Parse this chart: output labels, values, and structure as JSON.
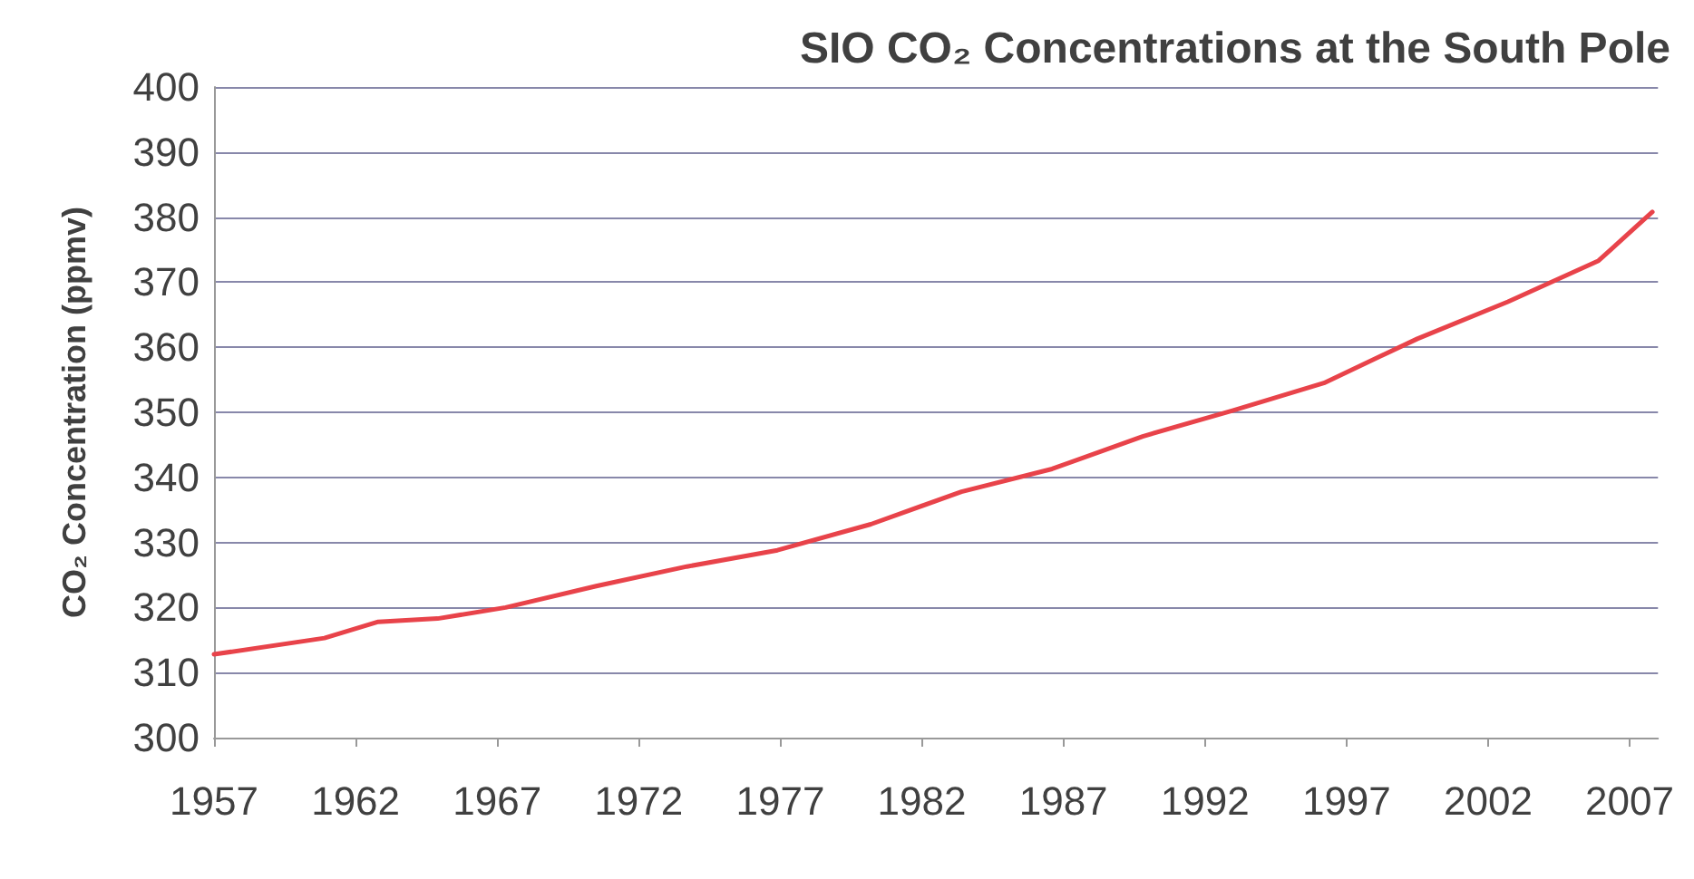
{
  "chart_data": {
    "type": "line",
    "title": "SIO CO₂ Concentrations at the South Pole",
    "ylabel": "CO₂ Concentration (ppmv)",
    "x": [
      1957,
      1960.9,
      1962.8,
      1964.9,
      1967.3,
      1970.5,
      1973.7,
      1976.9,
      1980.2,
      1983.4,
      1986.6,
      1989.8,
      1993,
      1996.2,
      1999.5,
      2002.7,
      2005.9,
      2007.8
    ],
    "values": [
      312.8,
      315.3,
      317.8,
      318.3,
      320,
      323.3,
      326.3,
      328.8,
      332.8,
      337.8,
      341.3,
      346.3,
      350.3,
      354.5,
      361.3,
      367,
      373.3,
      380.8
    ],
    "color": "#e8434a",
    "xlim": [
      1957,
      2008
    ],
    "xticks": [
      1957,
      1962,
      1967,
      1972,
      1977,
      1982,
      1987,
      1992,
      1997,
      2002,
      2007
    ],
    "ylim": [
      300,
      400
    ],
    "yticks": [
      300,
      310,
      320,
      330,
      340,
      350,
      360,
      370,
      380,
      390,
      400
    ],
    "grid": "y",
    "marker": "none",
    "line_style": "solid"
  }
}
